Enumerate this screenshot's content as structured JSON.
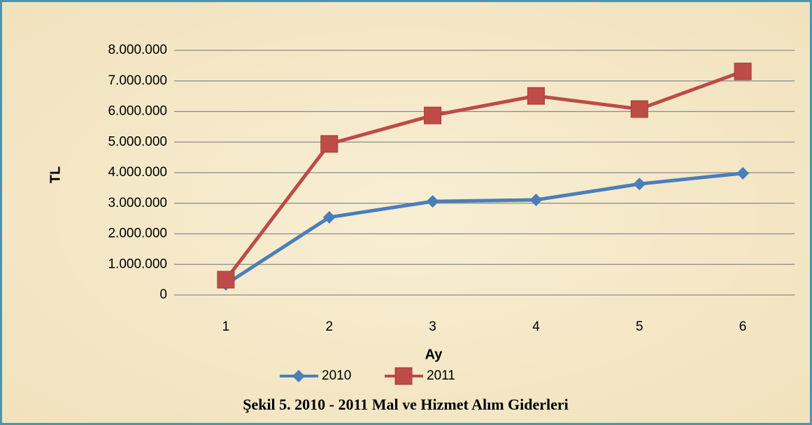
{
  "chart_data": {
    "type": "line",
    "caption": "Şekil 5. 2010 - 2011 Mal ve Hizmet Alım Giderleri",
    "x_label": "Ay",
    "y_label": "TL",
    "categories": [
      "1",
      "2",
      "3",
      "4",
      "5",
      "6"
    ],
    "series": [
      {
        "name": "2010",
        "color": "#4a7ebb",
        "marker": "diamond",
        "values": [
          350000,
          2540000,
          3060000,
          3110000,
          3630000,
          3980000
        ]
      },
      {
        "name": "2011",
        "color": "#be4b48",
        "marker": "square",
        "values": [
          500000,
          4940000,
          5870000,
          6510000,
          6080000,
          7310000
        ]
      }
    ],
    "ylim": [
      0,
      8000000
    ],
    "yticks": [
      0,
      {
        "value": 1000000,
        "label": "1.000.000"
      },
      {
        "value": 2000000,
        "label": "2.000.000"
      },
      {
        "value": 3000000,
        "label": "3.000.000"
      },
      {
        "value": 4000000,
        "label": "4.000.000"
      },
      {
        "value": 5000000,
        "label": "5.000.000"
      },
      {
        "value": 6000000,
        "label": "6.000.000"
      },
      {
        "value": 7000000,
        "label": "7.000.000"
      },
      {
        "value": 8000000,
        "label": "8.000.000"
      }
    ],
    "grid": true,
    "legend": "bottom"
  }
}
